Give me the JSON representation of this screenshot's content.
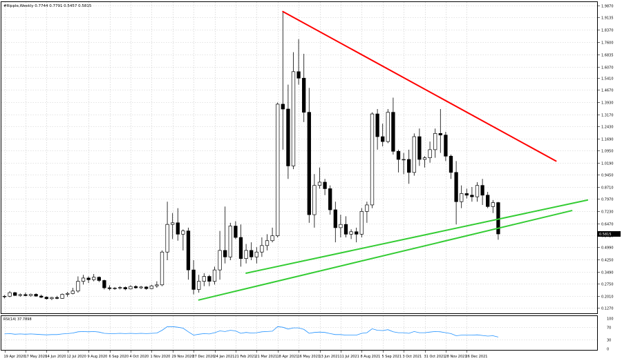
{
  "chart_data": {
    "type": "candlestick",
    "title": "#Ripple,Weekly  0.7744 0.7791 0.5457 0.5815",
    "price_ticks": [
      "1.9870",
      "1.9135",
      "1.8370",
      "1.7600",
      "1.6835",
      "1.6070",
      "1.5410",
      "1.4670",
      "1.3930",
      "1.3170",
      "1.2430",
      "1.1690",
      "1.0950",
      "1.0190",
      "0.9450",
      "0.8710",
      "0.7970",
      "0.7230",
      "0.6470",
      "0.5720",
      "0.4990",
      "0.4250",
      "0.3490",
      "0.2750",
      "0.2010",
      "0.1270"
    ],
    "ylim": [
      0.127,
      1.987
    ],
    "current_price": "0.5815",
    "x_labels": [
      {
        "week": 0,
        "label": "19 Apr 2020"
      },
      {
        "week": 4,
        "label": "17 May 2020"
      },
      {
        "week": 8,
        "label": "14 Jun 2020"
      },
      {
        "week": 12,
        "label": "12 Jul 2020"
      },
      {
        "week": 16,
        "label": "9 Aug 2020"
      },
      {
        "week": 20,
        "label": "6 Sep 2020"
      },
      {
        "week": 24,
        "label": "4 Oct 2020"
      },
      {
        "week": 28,
        "label": "1 Nov 2020"
      },
      {
        "week": 32,
        "label": "29 Nov 2020"
      },
      {
        "week": 36,
        "label": "27 Dec 2020"
      },
      {
        "week": 40,
        "label": "24 Jan 2021"
      },
      {
        "week": 44,
        "label": "21 Feb 2021"
      },
      {
        "week": 48,
        "label": "21 Mar 2021"
      },
      {
        "week": 52,
        "label": "18 Apr 2021"
      },
      {
        "week": 56,
        "label": "16 May 2021"
      },
      {
        "week": 60,
        "label": "13 Jun 2021"
      },
      {
        "week": 64,
        "label": "11 Jul 2021"
      },
      {
        "week": 68,
        "label": "8 Aug 2021"
      },
      {
        "week": 72,
        "label": "5 Sep 2021"
      },
      {
        "week": 76,
        "label": "3 Oct 2021"
      },
      {
        "week": 80,
        "label": "31 Oct 2021"
      },
      {
        "week": 84,
        "label": "28 Nov 2021"
      },
      {
        "week": 88,
        "label": "26 Dec 2021"
      }
    ],
    "candles": [
      [
        0.195,
        0.205,
        0.185,
        0.198
      ],
      [
        0.198,
        0.23,
        0.192,
        0.22
      ],
      [
        0.22,
        0.225,
        0.2,
        0.203
      ],
      [
        0.203,
        0.215,
        0.195,
        0.208
      ],
      [
        0.208,
        0.22,
        0.198,
        0.202
      ],
      [
        0.202,
        0.214,
        0.196,
        0.21
      ],
      [
        0.21,
        0.216,
        0.195,
        0.199
      ],
      [
        0.199,
        0.208,
        0.187,
        0.192
      ],
      [
        0.192,
        0.198,
        0.178,
        0.183
      ],
      [
        0.183,
        0.195,
        0.175,
        0.19
      ],
      [
        0.19,
        0.2,
        0.18,
        0.185
      ],
      [
        0.185,
        0.215,
        0.183,
        0.21
      ],
      [
        0.21,
        0.225,
        0.195,
        0.215
      ],
      [
        0.215,
        0.25,
        0.21,
        0.23
      ],
      [
        0.23,
        0.32,
        0.22,
        0.29
      ],
      [
        0.29,
        0.33,
        0.27,
        0.31
      ],
      [
        0.31,
        0.32,
        0.28,
        0.3
      ],
      [
        0.3,
        0.335,
        0.29,
        0.315
      ],
      [
        0.315,
        0.32,
        0.285,
        0.295
      ],
      [
        0.295,
        0.3,
        0.24,
        0.25
      ],
      [
        0.25,
        0.265,
        0.235,
        0.245
      ],
      [
        0.245,
        0.255,
        0.238,
        0.248
      ],
      [
        0.248,
        0.26,
        0.24,
        0.252
      ],
      [
        0.252,
        0.258,
        0.235,
        0.243
      ],
      [
        0.243,
        0.265,
        0.24,
        0.258
      ],
      [
        0.258,
        0.265,
        0.245,
        0.25
      ],
      [
        0.25,
        0.262,
        0.242,
        0.255
      ],
      [
        0.255,
        0.26,
        0.238,
        0.245
      ],
      [
        0.245,
        0.268,
        0.242,
        0.262
      ],
      [
        0.262,
        0.29,
        0.25,
        0.268
      ],
      [
        0.268,
        0.48,
        0.26,
        0.47
      ],
      [
        0.47,
        0.78,
        0.42,
        0.64
      ],
      [
        0.64,
        0.71,
        0.55,
        0.65
      ],
      [
        0.65,
        0.74,
        0.54,
        0.58
      ],
      [
        0.58,
        0.61,
        0.48,
        0.6
      ],
      [
        0.6,
        0.62,
        0.3,
        0.36
      ],
      [
        0.36,
        0.42,
        0.21,
        0.24
      ],
      [
        0.24,
        0.33,
        0.22,
        0.29
      ],
      [
        0.29,
        0.34,
        0.26,
        0.32
      ],
      [
        0.32,
        0.33,
        0.26,
        0.29
      ],
      [
        0.29,
        0.38,
        0.27,
        0.36
      ],
      [
        0.36,
        0.6,
        0.3,
        0.48
      ],
      [
        0.48,
        0.75,
        0.4,
        0.44
      ],
      [
        0.44,
        0.65,
        0.42,
        0.63
      ],
      [
        0.63,
        0.66,
        0.55,
        0.56
      ],
      [
        0.56,
        0.64,
        0.38,
        0.43
      ],
      [
        0.43,
        0.52,
        0.4,
        0.48
      ],
      [
        0.48,
        0.53,
        0.42,
        0.44
      ],
      [
        0.44,
        0.5,
        0.4,
        0.47
      ],
      [
        0.47,
        0.56,
        0.44,
        0.51
      ],
      [
        0.51,
        0.58,
        0.48,
        0.54
      ],
      [
        0.54,
        0.62,
        0.53,
        0.57
      ],
      [
        0.57,
        1.39,
        0.56,
        1.38
      ],
      [
        1.38,
        1.95,
        1.1,
        1.35
      ],
      [
        1.35,
        1.5,
        0.92,
        1.0
      ],
      [
        1.0,
        1.7,
        0.98,
        1.58
      ],
      [
        1.58,
        1.78,
        1.5,
        1.54
      ],
      [
        1.54,
        1.69,
        1.27,
        1.33
      ],
      [
        1.33,
        1.48,
        0.65,
        0.7
      ],
      [
        0.7,
        0.95,
        0.62,
        0.88
      ],
      [
        0.88,
        0.99,
        0.86,
        0.9
      ],
      [
        0.9,
        0.92,
        0.82,
        0.86
      ],
      [
        0.86,
        0.88,
        0.7,
        0.73
      ],
      [
        0.73,
        0.78,
        0.53,
        0.62
      ],
      [
        0.62,
        0.7,
        0.56,
        0.64
      ],
      [
        0.64,
        0.69,
        0.56,
        0.58
      ],
      [
        0.58,
        0.61,
        0.55,
        0.595
      ],
      [
        0.595,
        0.62,
        0.53,
        0.58
      ],
      [
        0.58,
        0.74,
        0.56,
        0.72
      ],
      [
        0.72,
        0.78,
        0.65,
        0.76
      ],
      [
        0.76,
        1.33,
        0.74,
        1.32
      ],
      [
        1.32,
        1.35,
        1.1,
        1.18
      ],
      [
        1.18,
        1.26,
        1.12,
        1.15
      ],
      [
        1.15,
        1.35,
        1.14,
        1.33
      ],
      [
        1.33,
        1.42,
        1.07,
        1.09
      ],
      [
        1.09,
        1.1,
        0.96,
        1.04
      ],
      [
        1.04,
        1.08,
        0.95,
        1.04
      ],
      [
        1.04,
        1.1,
        0.89,
        0.96
      ],
      [
        0.96,
        1.2,
        0.94,
        1.18
      ],
      [
        1.18,
        1.23,
        1.0,
        1.04
      ],
      [
        1.04,
        1.06,
        0.99,
        1.05
      ],
      [
        1.05,
        1.15,
        1.02,
        1.1
      ],
      [
        1.1,
        1.23,
        1.05,
        1.2
      ],
      [
        1.2,
        1.35,
        1.08,
        1.19
      ],
      [
        1.19,
        1.21,
        1.03,
        1.06
      ],
      [
        1.06,
        1.07,
        0.92,
        0.96
      ],
      [
        0.96,
        1.03,
        0.64,
        0.78
      ],
      [
        0.78,
        0.88,
        0.74,
        0.83
      ],
      [
        0.83,
        0.86,
        0.8,
        0.82
      ],
      [
        0.82,
        0.87,
        0.78,
        0.81
      ],
      [
        0.81,
        0.9,
        0.78,
        0.88
      ],
      [
        0.88,
        0.92,
        0.76,
        0.82
      ],
      [
        0.82,
        0.84,
        0.74,
        0.75
      ],
      [
        0.75,
        0.79,
        0.71,
        0.774
      ],
      [
        0.7744,
        0.7791,
        0.5457,
        0.5815
      ]
    ],
    "trendlines": [
      {
        "color": "#ff0000",
        "points": [
          [
            53,
            1.95
          ],
          [
            105,
            1.03
          ]
        ]
      },
      {
        "color": "#33cc33",
        "points": [
          [
            46,
            0.34
          ],
          [
            111,
            0.79
          ]
        ]
      },
      {
        "color": "#33cc33",
        "points": [
          [
            37,
            0.175
          ],
          [
            108,
            0.725
          ]
        ]
      }
    ],
    "rsi": {
      "label": "RSI(14) 37.7898",
      "ticks": [
        "100",
        "70",
        "30",
        "0"
      ],
      "ylim": [
        0,
        100
      ],
      "values": [
        48,
        49,
        47,
        48,
        47,
        48,
        47,
        46,
        45,
        46,
        46,
        48,
        49,
        51,
        55,
        56,
        55,
        56,
        54,
        50,
        49,
        49,
        50,
        49,
        50,
        49,
        50,
        49,
        50,
        51,
        60,
        72,
        72,
        70,
        67,
        55,
        44,
        47,
        49,
        48,
        52,
        58,
        56,
        60,
        58,
        50,
        53,
        51,
        52,
        55,
        56,
        57,
        72,
        70,
        64,
        68,
        68,
        63,
        50,
        53,
        54,
        53,
        49,
        46,
        46,
        44,
        44,
        44,
        50,
        52,
        65,
        60,
        59,
        62,
        55,
        52,
        52,
        50,
        56,
        52,
        52,
        54,
        56,
        55,
        52,
        49,
        42,
        44,
        44,
        44,
        45,
        43,
        41,
        42,
        37.79
      ]
    }
  }
}
